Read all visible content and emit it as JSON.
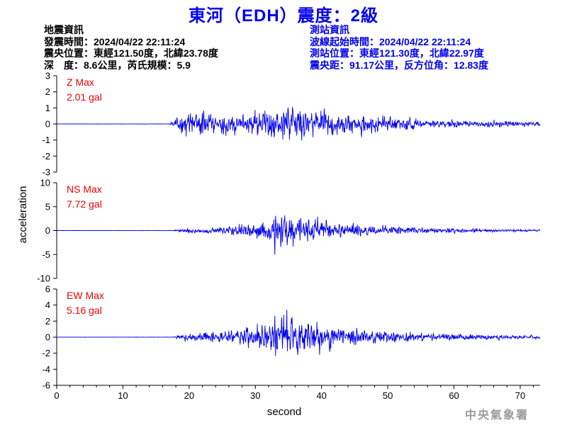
{
  "header": {
    "title": "東河（EDH）震度：2級"
  },
  "event_info": {
    "heading": "地震資訊",
    "origin_time": "發震時間：2024/04/22 22:11:24",
    "epicenter": "震央位置：東經121.50度，北緯23.78度",
    "depth_magnitude": "深　度：8.6公里，芮氏規模：5.9"
  },
  "station_info": {
    "heading": "測站資訊",
    "waveform_start": "波線起始時間：2024/04/22 22:11:24",
    "station_location": "測站位置：東經121.30度，北緯22.97度",
    "distance_azimuth": "震央距：91.17公里，反方位角：12.83度"
  },
  "footer": {
    "agency": "中央氣象署"
  },
  "colors": {
    "title": "#0000ee",
    "trace": "#0000ee",
    "max_label": "#ee0000",
    "station_info": "#0000ee"
  },
  "chart_data": {
    "type": "line",
    "xlabel": "second",
    "ylabel": "acceleration",
    "xlim": [
      0,
      73
    ],
    "x_ticks": [
      0,
      10,
      20,
      30,
      40,
      50,
      60,
      70
    ],
    "grid": false,
    "sample_rate_hz": 20,
    "panels": [
      {
        "component": "Z",
        "max_label": "Z Max",
        "max_value": "2.01 gal",
        "ylim": [
          -3,
          3
        ],
        "y_ticks": [
          -3,
          -2,
          -1,
          0,
          1,
          2,
          3
        ],
        "envelope": [
          [
            0,
            0.01
          ],
          [
            17,
            0.02
          ],
          [
            17.8,
            0.45
          ],
          [
            19,
            1.15
          ],
          [
            23,
            1.25
          ],
          [
            27,
            0.95
          ],
          [
            33,
            1.45
          ],
          [
            35,
            1.75
          ],
          [
            38,
            1.35
          ],
          [
            42,
            1.15
          ],
          [
            47,
            0.9
          ],
          [
            52,
            0.6
          ],
          [
            57,
            0.45
          ],
          [
            63,
            0.33
          ],
          [
            68,
            0.26
          ],
          [
            73,
            0.2
          ]
        ]
      },
      {
        "component": "NS",
        "max_label": "NS Max",
        "max_value": "7.72 gal",
        "ylim": [
          -10,
          10
        ],
        "y_ticks": [
          -10,
          -5,
          0,
          5,
          10
        ],
        "envelope": [
          [
            0,
            0.02
          ],
          [
            17.5,
            0.05
          ],
          [
            18.5,
            0.4
          ],
          [
            20,
            0.8
          ],
          [
            26,
            1.3
          ],
          [
            31,
            3.2
          ],
          [
            33,
            5.5
          ],
          [
            35,
            6.8
          ],
          [
            37,
            4.5
          ],
          [
            40,
            3.0
          ],
          [
            45,
            2.0
          ],
          [
            50,
            1.3
          ],
          [
            55,
            0.95
          ],
          [
            62,
            0.65
          ],
          [
            68,
            0.45
          ],
          [
            73,
            0.35
          ]
        ]
      },
      {
        "component": "EW",
        "max_label": "EW Max",
        "max_value": "5.16 gal",
        "ylim": [
          -6,
          6
        ],
        "y_ticks": [
          -6,
          -4,
          -2,
          0,
          2,
          4,
          6
        ],
        "envelope": [
          [
            0,
            0.02
          ],
          [
            17.5,
            0.05
          ],
          [
            18.5,
            0.5
          ],
          [
            21,
            0.8
          ],
          [
            27,
            1.5
          ],
          [
            31,
            2.8
          ],
          [
            34,
            4.3
          ],
          [
            36,
            3.6
          ],
          [
            39,
            3.0
          ],
          [
            43,
            2.1
          ],
          [
            48,
            1.4
          ],
          [
            53,
            0.9
          ],
          [
            58,
            0.65
          ],
          [
            65,
            0.45
          ],
          [
            73,
            0.35
          ]
        ]
      }
    ]
  }
}
